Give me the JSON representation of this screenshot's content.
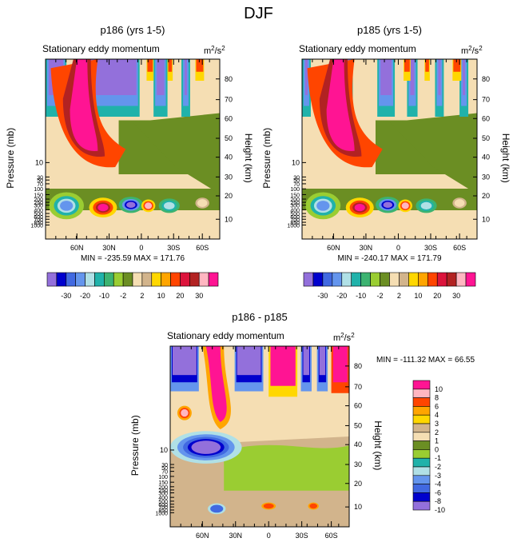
{
  "figure": {
    "title": "DJF"
  },
  "palette": {
    "full": [
      "#9370db",
      "#0000cd",
      "#4169e1",
      "#6495ed",
      "#b0e0e6",
      "#20b2aa",
      "#3cb371",
      "#9acd32",
      "#6b8e23",
      "#f5deb3",
      "#d2b48c",
      "#ffd700",
      "#ffa500",
      "#ff4500",
      "#dc143c",
      "#b22222",
      "#ffb6c1",
      "#ff1493"
    ],
    "diff": [
      "#9370db",
      "#0000cd",
      "#4169e1",
      "#6495ed",
      "#b0e0e6",
      "#20b2aa",
      "#9acd32",
      "#6b8e23",
      "#f5deb3",
      "#d2b48c",
      "#ffd700",
      "#ffa500",
      "#ff4500",
      "#ffb6c1",
      "#ff1493"
    ]
  },
  "chart_data": [
    {
      "type": "heatmap",
      "title": "p186 (yrs 1-5)",
      "subtitle": "Stationary eddy momentum",
      "units": {
        "base": "m",
        "sup1": "2",
        "mid": "/s",
        "sup2": "2"
      },
      "ylabel": "Pressure (mb)",
      "y2label": "Height (km)",
      "x_ticklabels": [
        "60N",
        "30N",
        "0",
        "30S",
        "60S"
      ],
      "y_ticklabels": [
        "10",
        "30",
        "50",
        "70",
        "100",
        "150",
        "200",
        "250",
        "300",
        "400",
        "500",
        "600",
        "700",
        "850",
        "1000"
      ],
      "height_ticklabels": [
        "10",
        "20",
        "30",
        "40",
        "50",
        "60",
        "70",
        "80"
      ],
      "min_label": "MIN = -235.59",
      "max_label": "MAX = 171.76",
      "min": -235.59,
      "max": 171.76,
      "colorbar_labels": [
        "-30",
        "-20",
        "-10",
        "-2",
        "2",
        "10",
        "20",
        "30"
      ]
    },
    {
      "type": "heatmap",
      "title": "p185 (yrs 1-5)",
      "subtitle": "Stationary eddy momentum",
      "units": {
        "base": "m",
        "sup1": "2",
        "mid": "/s",
        "sup2": "2"
      },
      "ylabel": "Pressure (mb)",
      "y2label": "Height (km)",
      "x_ticklabels": [
        "60N",
        "30N",
        "0",
        "30S",
        "60S"
      ],
      "y_ticklabels": [
        "10",
        "30",
        "50",
        "70",
        "100",
        "150",
        "200",
        "250",
        "300",
        "400",
        "500",
        "600",
        "700",
        "850",
        "1000"
      ],
      "height_ticklabels": [
        "10",
        "20",
        "30",
        "40",
        "50",
        "60",
        "70",
        "80"
      ],
      "min_label": "MIN = -240.17",
      "max_label": "MAX = 171.79",
      "min": -240.17,
      "max": 171.79,
      "colorbar_labels": [
        "-30",
        "-20",
        "-10",
        "-2",
        "2",
        "10",
        "20",
        "30"
      ]
    },
    {
      "type": "heatmap",
      "title": "p186 - p185",
      "subtitle": "Stationary eddy momentum",
      "units": {
        "base": "m",
        "sup1": "2",
        "mid": "/s",
        "sup2": "2"
      },
      "ylabel": "Pressure (mb)",
      "y2label": "Height (km)",
      "x_ticklabels": [
        "60N",
        "30N",
        "0",
        "30S",
        "60S"
      ],
      "y_ticklabels": [
        "10",
        "30",
        "50",
        "70",
        "100",
        "150",
        "200",
        "250",
        "300",
        "400",
        "500",
        "600",
        "700",
        "850",
        "1000"
      ],
      "height_ticklabels": [
        "10",
        "20",
        "30",
        "40",
        "50",
        "60",
        "70",
        "80"
      ],
      "min_max_label": "MIN = -111.32  MAX = 66.55",
      "min": -111.32,
      "max": 66.55,
      "colorbar_labels": [
        "10",
        "8",
        "6",
        "4",
        "3",
        "2",
        "1",
        "0",
        "-1",
        "-2",
        "-3",
        "-4",
        "-6",
        "-8",
        "-10"
      ]
    }
  ]
}
